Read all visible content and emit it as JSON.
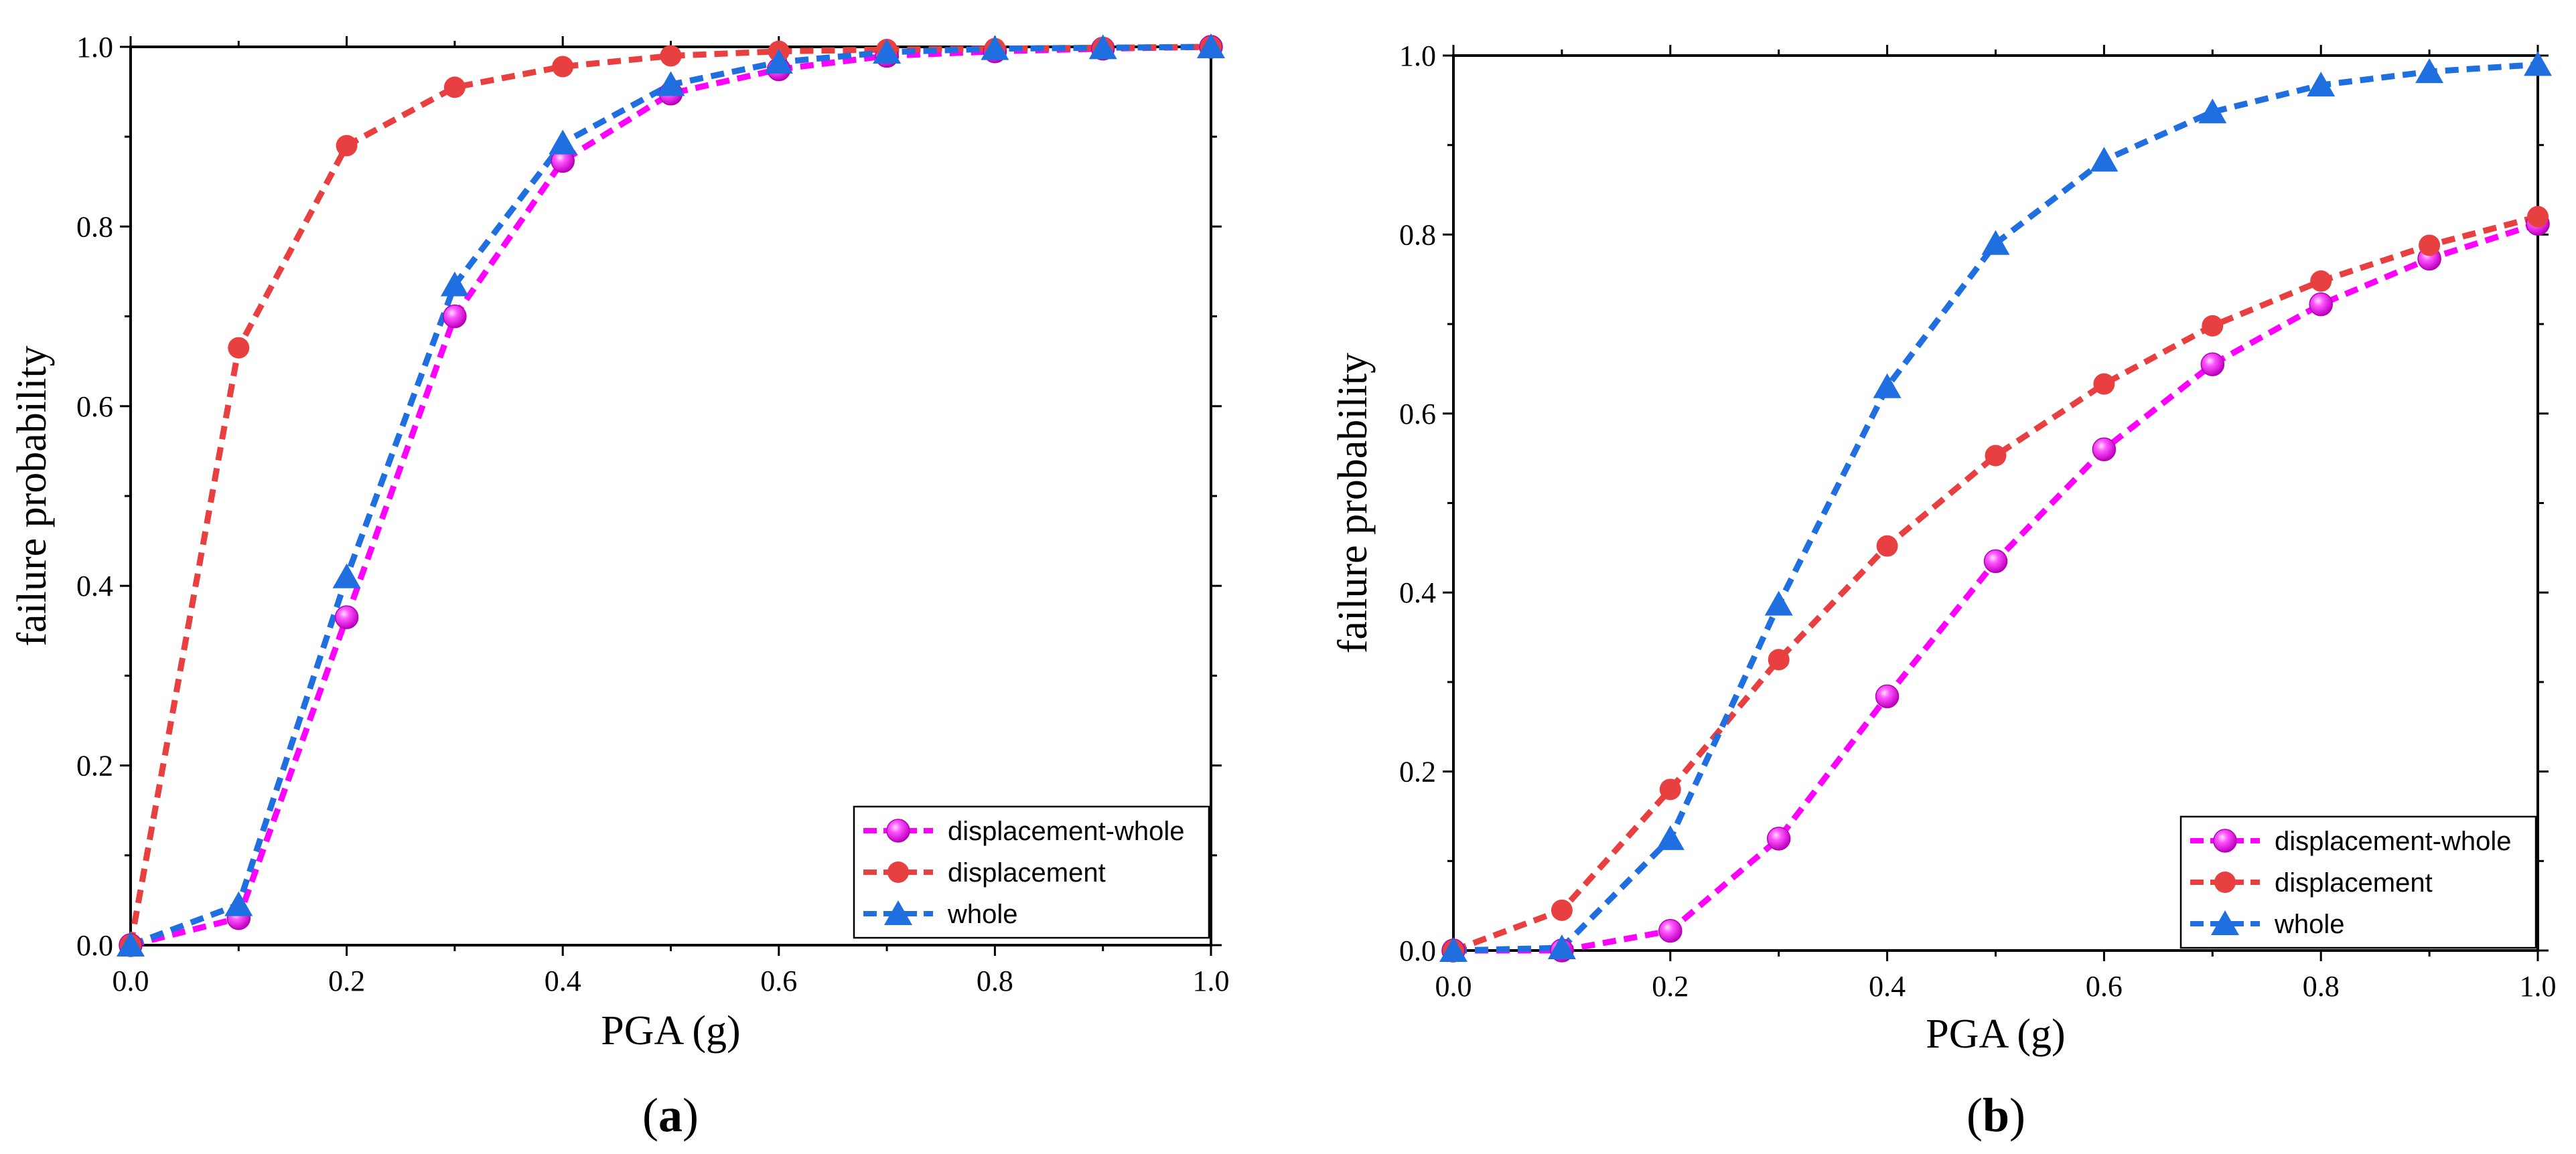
{
  "chart_data": [
    {
      "type": "line",
      "panel_label": "a",
      "xlabel": "PGA (g)",
      "ylabel": "failure probability",
      "xlim": [
        0,
        1.0
      ],
      "ylim": [
        0,
        1.0
      ],
      "xticks": [
        "0.0",
        "0.2",
        "0.4",
        "0.6",
        "0.8",
        "1.0"
      ],
      "yticks": [
        "0.0",
        "0.2",
        "0.4",
        "0.6",
        "0.8",
        "1.0"
      ],
      "legend_position": "bottom-right",
      "x": [
        0,
        0.1,
        0.2,
        0.3,
        0.4,
        0.5,
        0.6,
        0.7,
        0.8,
        0.9,
        1.0
      ],
      "series": [
        {
          "name": "displacement-whole",
          "color": "#ff00ff",
          "marker": "sphere",
          "values": [
            0,
            0.03,
            0.365,
            0.7,
            0.873,
            0.948,
            0.975,
            0.99,
            0.995,
            0.998,
            1.0
          ]
        },
        {
          "name": "displacement",
          "color": "#e84040",
          "marker": "circle",
          "values": [
            0,
            0.665,
            0.89,
            0.955,
            0.978,
            0.99,
            0.995,
            0.997,
            0.998,
            0.999,
            1.0
          ]
        },
        {
          "name": "whole",
          "color": "#1f6fe0",
          "marker": "triangle",
          "values": [
            0,
            0.045,
            0.41,
            0.735,
            0.893,
            0.958,
            0.983,
            0.994,
            0.998,
            0.999,
            1.0
          ]
        }
      ]
    },
    {
      "type": "line",
      "panel_label": "b",
      "xlabel": "PGA (g)",
      "ylabel": "failure probability",
      "xlim": [
        0,
        1.0
      ],
      "ylim": [
        0,
        1.0
      ],
      "xticks": [
        "0.0",
        "0.2",
        "0.4",
        "0.6",
        "0.8",
        "1.0"
      ],
      "yticks": [
        "0.0",
        "0.2",
        "0.4",
        "0.6",
        "0.8",
        "1.0"
      ],
      "legend_position": "bottom-right",
      "x": [
        0,
        0.1,
        0.2,
        0.3,
        0.4,
        0.5,
        0.6,
        0.7,
        0.8,
        0.9,
        1.0
      ],
      "series": [
        {
          "name": "displacement-whole",
          "color": "#ff00ff",
          "marker": "sphere",
          "values": [
            0,
            0,
            0.022,
            0.125,
            0.284,
            0.435,
            0.56,
            0.655,
            0.722,
            0.773,
            0.812
          ]
        },
        {
          "name": "displacement",
          "color": "#e84040",
          "marker": "circle",
          "values": [
            0,
            0.045,
            0.18,
            0.325,
            0.452,
            0.553,
            0.633,
            0.698,
            0.748,
            0.788,
            0.82
          ]
        },
        {
          "name": "whole",
          "color": "#1f6fe0",
          "marker": "triangle",
          "values": [
            0,
            0.003,
            0.125,
            0.387,
            0.63,
            0.79,
            0.883,
            0.937,
            0.967,
            0.982,
            0.99
          ]
        }
      ]
    }
  ]
}
